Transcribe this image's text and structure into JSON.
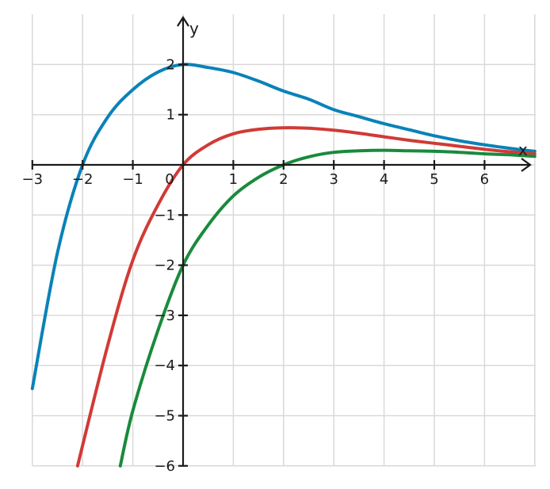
{
  "chart_data": {
    "type": "line",
    "title": "",
    "xlabel": "x",
    "ylabel": "y",
    "xlim": [
      -3,
      7
    ],
    "ylim": [
      -6,
      2.8
    ],
    "x_ticks": [
      -3,
      -2,
      -1,
      0,
      1,
      2,
      3,
      4,
      5,
      6
    ],
    "x_tick_labels": [
      "−3",
      "−2",
      "−1",
      "0",
      "1",
      "2",
      "3",
      "4",
      "5",
      "6"
    ],
    "y_ticks": [
      -6,
      -5,
      -4,
      -3,
      -2,
      -1,
      1,
      2
    ],
    "y_tick_labels": [
      "−6",
      "−5",
      "−4",
      "−3",
      "−2",
      "−1",
      "1",
      "2"
    ],
    "grid": true,
    "series": [
      {
        "color": "#0a82b8",
        "x": [
          -3,
          -2.5,
          -2,
          -1.5,
          -1,
          -0.5,
          0,
          0.5,
          1,
          1.5,
          2,
          2.5,
          3,
          3.5,
          4,
          4.5,
          5,
          5.5,
          6,
          6.5,
          7
        ],
        "y": [
          -4.46,
          -1.75,
          0.0,
          0.95,
          1.5,
          1.85,
          2.0,
          1.94,
          1.84,
          1.67,
          1.47,
          1.31,
          1.1,
          0.96,
          0.82,
          0.7,
          0.58,
          0.48,
          0.4,
          0.33,
          0.27
        ]
      },
      {
        "color": "#d13a36",
        "x": [
          -2.1,
          -1.5,
          -1,
          -0.5,
          0,
          0.5,
          1,
          1.5,
          2,
          2.5,
          3,
          3.5,
          4,
          4.5,
          5,
          5.5,
          6,
          6.5,
          7
        ],
        "y": [
          -6.0,
          -3.6,
          -1.9,
          -0.8,
          0.0,
          0.4,
          0.62,
          0.71,
          0.74,
          0.73,
          0.69,
          0.63,
          0.56,
          0.49,
          0.43,
          0.37,
          0.31,
          0.26,
          0.22
        ]
      },
      {
        "color": "#1a8a3c",
        "x": [
          -1.25,
          -1,
          -0.5,
          0,
          0.5,
          1,
          1.5,
          2,
          2.5,
          3,
          3.5,
          4,
          4.5,
          5,
          5.5,
          6,
          6.5,
          7
        ],
        "y": [
          -6.0,
          -4.9,
          -3.3,
          -2.0,
          -1.2,
          -0.62,
          -0.25,
          0.0,
          0.16,
          0.25,
          0.28,
          0.29,
          0.28,
          0.27,
          0.25,
          0.22,
          0.2,
          0.17
        ]
      }
    ]
  }
}
